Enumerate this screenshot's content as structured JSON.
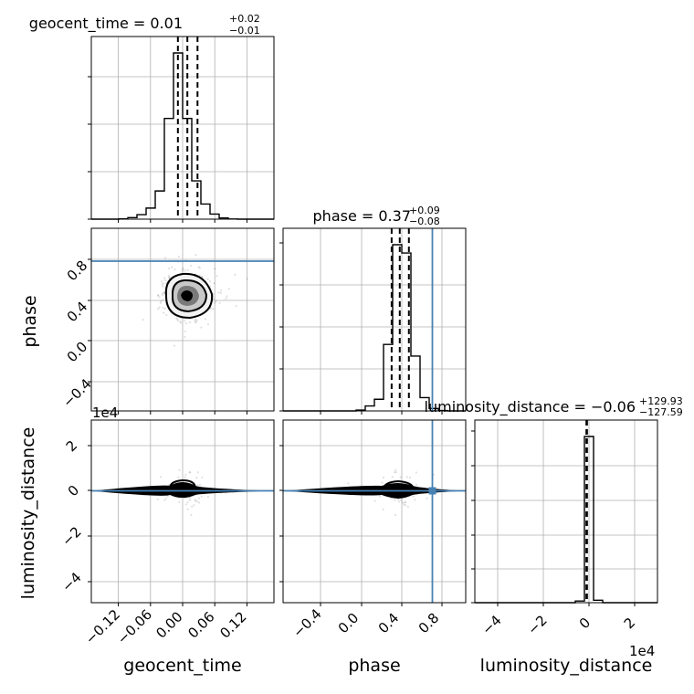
{
  "chart_data": {
    "type": "corner",
    "parameters": [
      "geocent_time",
      "phase",
      "luminosity_distance"
    ],
    "titles": [
      {
        "param": "geocent_time",
        "text": "geocent_time = 0.01",
        "median": 0.01,
        "plus": "+0.02",
        "minus": "−0.01"
      },
      {
        "param": "phase",
        "text": "phase = 0.37",
        "median": 0.37,
        "plus": "+0.09",
        "minus": "−0.08"
      },
      {
        "param": "luminosity_distance",
        "text": "luminosity_distance = −0.06",
        "median": -0.06,
        "plus": "+129.93",
        "minus": "−127.59"
      }
    ],
    "axis_labels": {
      "geocent_time": "geocent_time",
      "phase": "phase",
      "luminosity_distance": "luminosity_distance"
    },
    "ranges": {
      "geocent_time": [
        -0.135,
        0.135
      ],
      "phase": [
        -0.78,
        1.02
      ],
      "luminosity_distance": [
        -49000,
        31000
      ]
    },
    "ticks": {
      "geocent_time": {
        "values": [
          -0.12,
          -0.06,
          0.0,
          0.06,
          0.12
        ],
        "labels": [
          "−0.12",
          "−0.06",
          "0.00",
          "0.06",
          "0.12"
        ]
      },
      "phase": {
        "values": [
          -0.4,
          0.0,
          0.4,
          0.8
        ],
        "labels": [
          "−0.4",
          "0.0",
          "0.4",
          "0.8"
        ]
      },
      "luminosity_distance": {
        "values": [
          -40000,
          -20000,
          0,
          20000
        ],
        "labels": [
          "−4",
          "−2",
          "0",
          "2"
        ]
      }
    },
    "offset_text": "1e4",
    "truths": {
      "geocent_time": null,
      "phase": 0.7,
      "luminosity_distance": 0
    },
    "histograms": {
      "geocent_time": {
        "edges": [
          -0.135,
          -0.1215,
          -0.108,
          -0.0945,
          -0.081,
          -0.0675,
          -0.054,
          -0.0405,
          -0.027,
          -0.0135,
          0.0,
          0.0135,
          0.027,
          0.0405,
          0.054,
          0.0675,
          0.081,
          0.0945,
          0.108,
          0.1215,
          0.135
        ],
        "heights": [
          0,
          0,
          0,
          0.3,
          1.5,
          4.5,
          11,
          28,
          100,
          165,
          100,
          38,
          15,
          5,
          1.2,
          0.2,
          0,
          0,
          0,
          0
        ],
        "quantiles": [
          -0.007,
          0.007,
          0.022
        ]
      },
      "phase": {
        "edges": [
          -0.78,
          -0.69,
          -0.6,
          -0.51,
          -0.42,
          -0.33,
          -0.24,
          -0.15,
          -0.06,
          0.03,
          0.12,
          0.21,
          0.3,
          0.39,
          0.48,
          0.57,
          0.66,
          0.75,
          0.84,
          0.93,
          1.02
        ],
        "heights": [
          0,
          0,
          0,
          0,
          0,
          0,
          0,
          0,
          0.5,
          3,
          7,
          40,
          100,
          95,
          33,
          8,
          1.5,
          0.2,
          0,
          0
        ],
        "quantiles": [
          0.29,
          0.37,
          0.46
        ]
      },
      "luminosity_distance": {
        "edges": [
          -49000,
          -45000,
          -41000,
          -37000,
          -33000,
          -29000,
          -25000,
          -21000,
          -17000,
          -13000,
          -9000,
          -5000,
          -1000,
          3000,
          7000,
          11000,
          15000,
          19000,
          23000,
          27000,
          31000
        ],
        "heights": [
          0,
          0,
          0,
          0,
          0,
          0,
          0,
          0,
          0,
          0,
          0,
          1,
          100,
          1.5,
          0,
          0,
          0,
          0,
          0,
          0
        ],
        "quantiles": [
          -128,
          -0.06,
          130
        ]
      }
    },
    "grid": true
  }
}
